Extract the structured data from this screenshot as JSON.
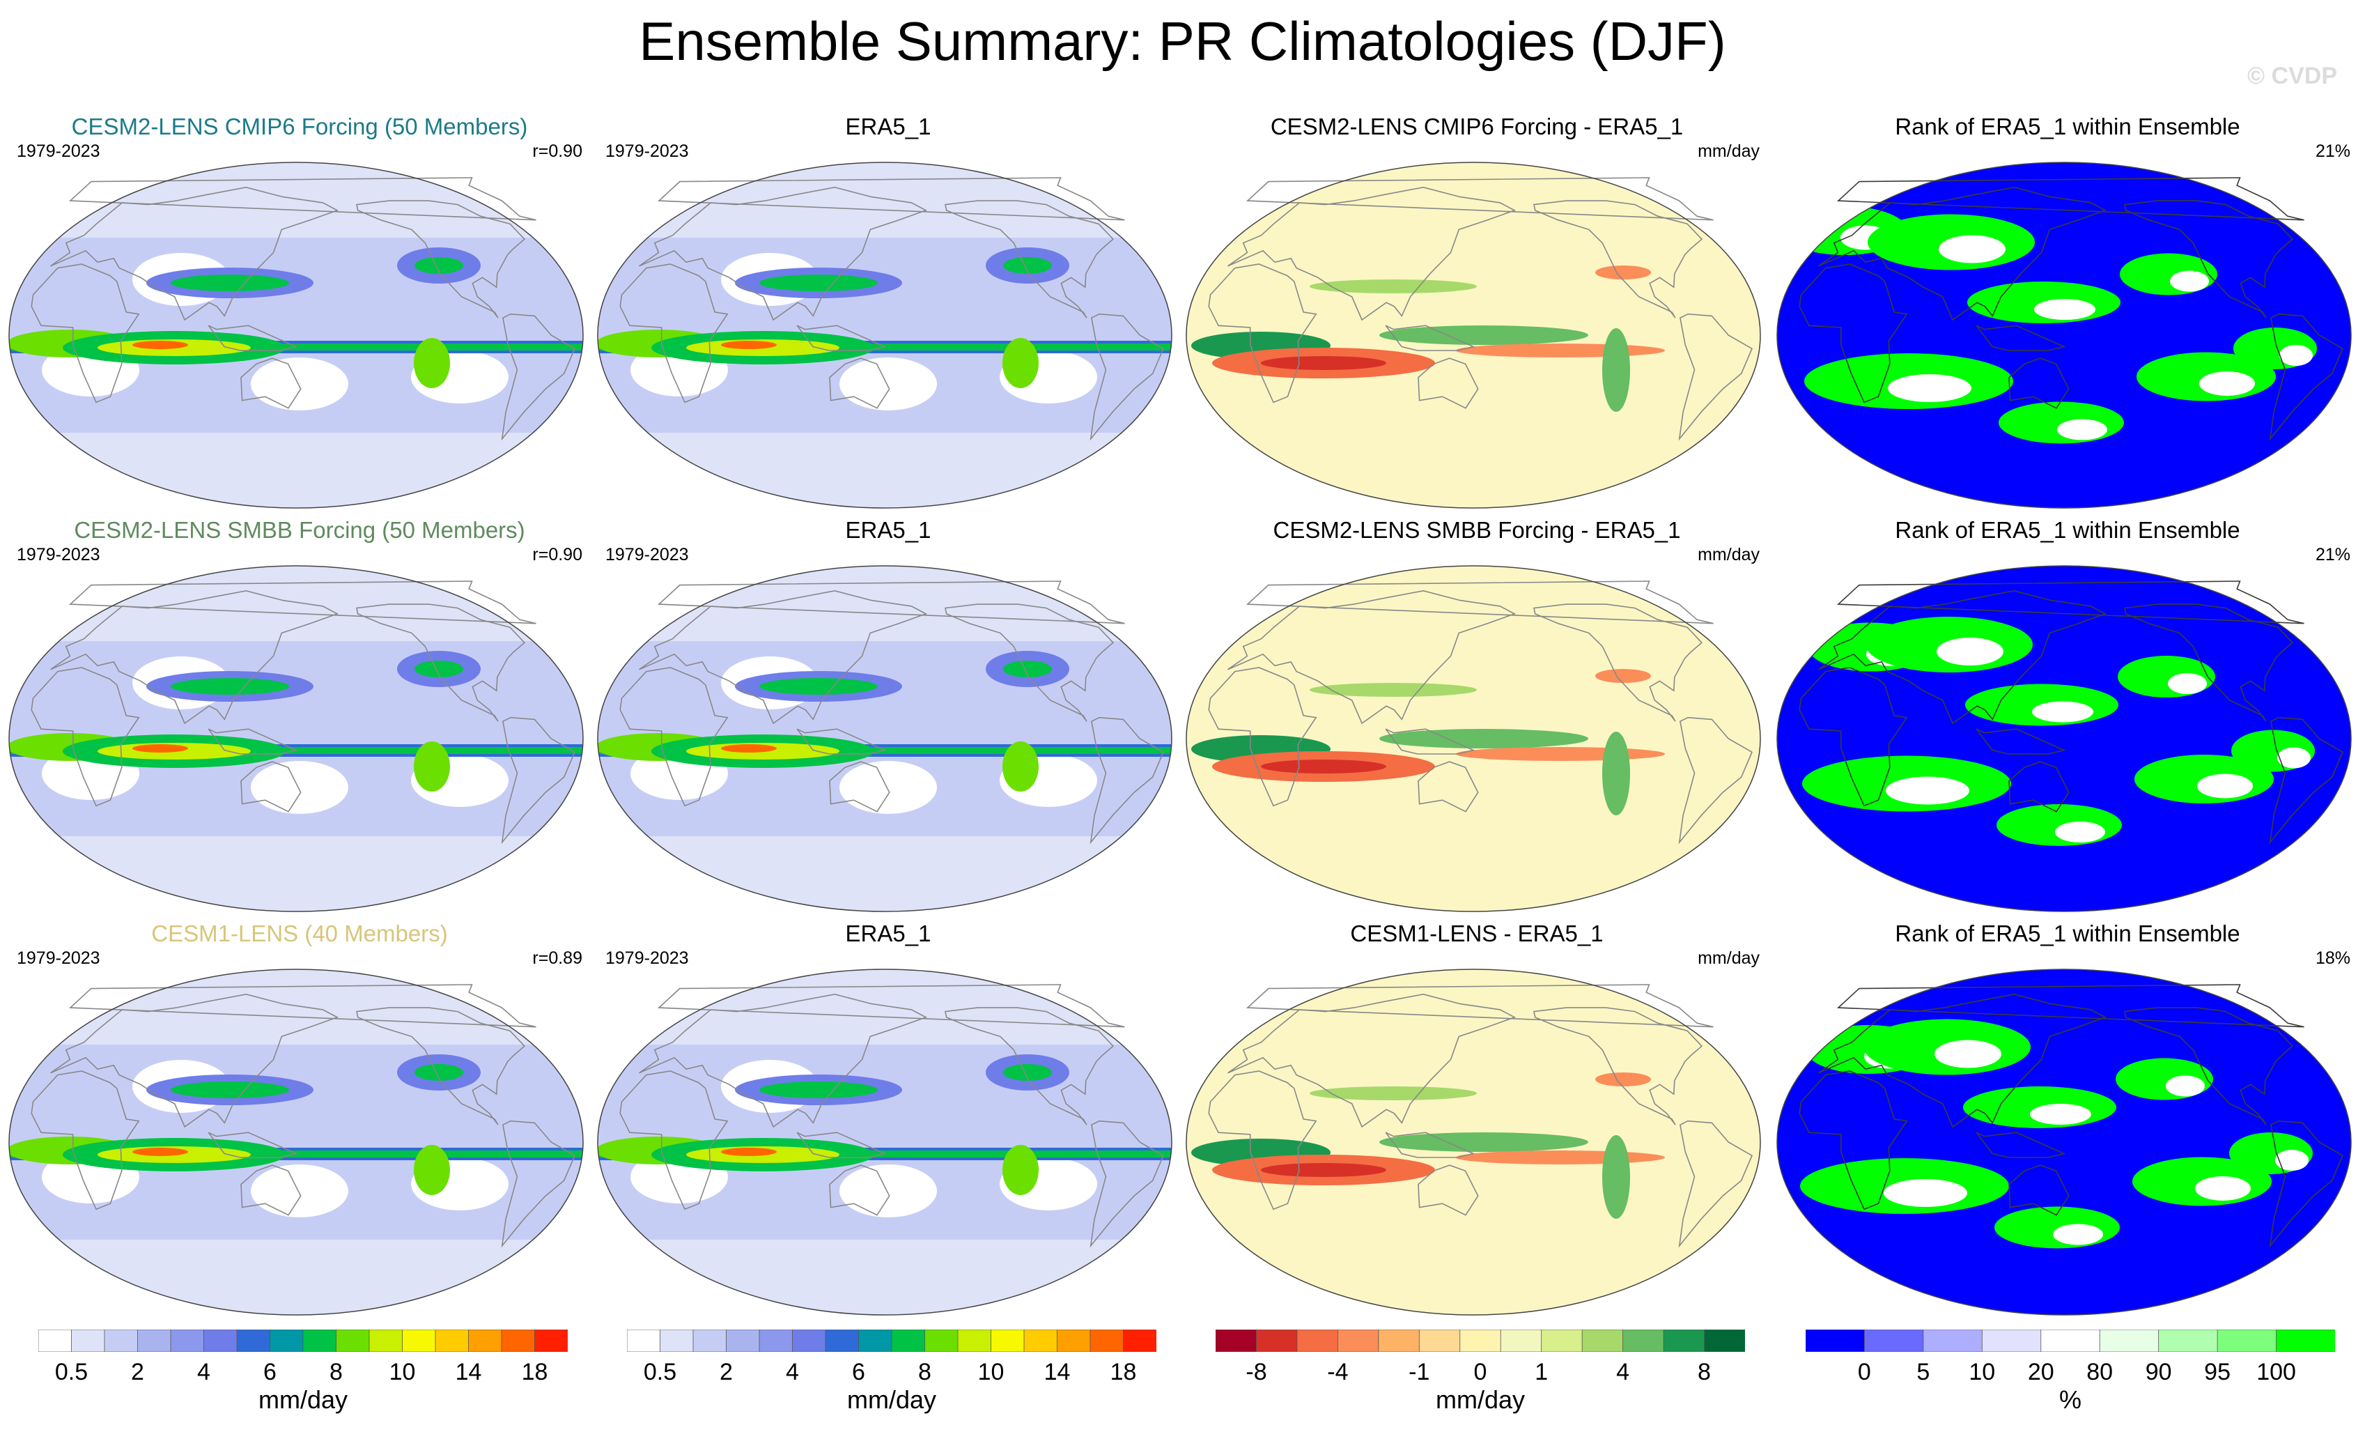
{
  "title": "Ensemble Summary: PR Climatologies (DJF)",
  "watermark": "© CVDP",
  "colors": {
    "mean_scale": [
      "#ffffff",
      "#dfe3f8",
      "#c6cdf5",
      "#a9b4ef",
      "#8c98eb",
      "#6f7de9",
      "#2f6ad8",
      "#0097a7",
      "#00c246",
      "#6bdf00",
      "#c8f000",
      "#f8f800",
      "#ffcc00",
      "#ff9f00",
      "#ff6600",
      "#ff2000"
    ],
    "diff_scale": [
      "#a50026",
      "#d73027",
      "#f46d43",
      "#fb8d59",
      "#fdb265",
      "#fed994",
      "#fff3b0",
      "#f2f7c0",
      "#d9ef8b",
      "#a6d96a",
      "#66bd63",
      "#1a9850",
      "#006837"
    ],
    "rank_scale": [
      "#0000ff",
      "#6a6aff",
      "#aeaeff",
      "#e2e2ff",
      "#ffffff",
      "#e6ffe6",
      "#b0ffb0",
      "#7dff7d",
      "#00ff00"
    ],
    "ocean_diff": "#fbf6c4",
    "outline": "#888888"
  },
  "panels": [
    {
      "id": "r1c1",
      "title": "CESM2-LENS CMIP6 Forcing (50 Members)",
      "title_color": "#1b7a8a",
      "left": "1979-2023",
      "right": "r=0.90",
      "kind": "mean"
    },
    {
      "id": "r1c2",
      "title": "ERA5_1",
      "title_color": "#000000",
      "left": "1979-2023",
      "right": "",
      "kind": "mean"
    },
    {
      "id": "r1c3",
      "title": "CESM2-LENS CMIP6 Forcing - ERA5_1",
      "title_color": "#000000",
      "left": "",
      "right": "mm/day",
      "kind": "diff"
    },
    {
      "id": "r1c4",
      "title": "Rank of ERA5_1 within Ensemble",
      "title_color": "#000000",
      "left": "",
      "right": "21%",
      "kind": "rank"
    },
    {
      "id": "r2c1",
      "title": "CESM2-LENS SMBB Forcing (50 Members)",
      "title_color": "#5f8a5f",
      "left": "1979-2023",
      "right": "r=0.90",
      "kind": "mean"
    },
    {
      "id": "r2c2",
      "title": "ERA5_1",
      "title_color": "#000000",
      "left": "1979-2023",
      "right": "",
      "kind": "mean"
    },
    {
      "id": "r2c3",
      "title": "CESM2-LENS SMBB Forcing - ERA5_1",
      "title_color": "#000000",
      "left": "",
      "right": "mm/day",
      "kind": "diff"
    },
    {
      "id": "r2c4",
      "title": "Rank of ERA5_1 within Ensemble",
      "title_color": "#000000",
      "left": "",
      "right": "21%",
      "kind": "rank"
    },
    {
      "id": "r3c1",
      "title": "CESM1-LENS (40 Members)",
      "title_color": "#d8c57a",
      "left": "1979-2023",
      "right": "r=0.89",
      "kind": "mean"
    },
    {
      "id": "r3c2",
      "title": "ERA5_1",
      "title_color": "#000000",
      "left": "1979-2023",
      "right": "",
      "kind": "mean"
    },
    {
      "id": "r3c3",
      "title": "CESM1-LENS - ERA5_1",
      "title_color": "#000000",
      "left": "",
      "right": "mm/day",
      "kind": "diff"
    },
    {
      "id": "r3c4",
      "title": "Rank of ERA5_1 within Ensemble",
      "title_color": "#000000",
      "left": "",
      "right": "18%",
      "kind": "rank"
    }
  ],
  "colorbars": [
    {
      "id": "cb1",
      "unit": "mm/day",
      "ticks": [
        "0.5",
        "2",
        "4",
        "6",
        "8",
        "10",
        "14",
        "18"
      ],
      "scale": "mean_scale",
      "tick_bounds": [
        1,
        3,
        5,
        7,
        9,
        11,
        13,
        15
      ]
    },
    {
      "id": "cb2",
      "unit": "mm/day",
      "ticks": [
        "0.5",
        "2",
        "4",
        "6",
        "8",
        "10",
        "14",
        "18"
      ],
      "scale": "mean_scale",
      "tick_bounds": [
        1,
        3,
        5,
        7,
        9,
        11,
        13,
        15
      ]
    },
    {
      "id": "cb3",
      "unit": "mm/day",
      "ticks": [
        "-8",
        "-4",
        "-1",
        "0",
        "1",
        "4",
        "8"
      ],
      "scale": "diff_scale",
      "tick_bounds": [
        1,
        3,
        5,
        6.5,
        8,
        10,
        12
      ]
    },
    {
      "id": "cb4",
      "unit": "%",
      "ticks": [
        "0",
        "5",
        "10",
        "20",
        "80",
        "90",
        "95",
        "100"
      ],
      "scale": "rank_scale",
      "tick_bounds": [
        1,
        2,
        3,
        4,
        5,
        6,
        7,
        8
      ]
    }
  ],
  "chart_data": {
    "type": "heatmap",
    "title": "Ensemble Summary: PR Climatologies (DJF)",
    "season": "DJF",
    "period": "1979-2023",
    "variable": "PR",
    "units": "mm/day",
    "rows": [
      {
        "model": "CESM2-LENS CMIP6 Forcing (50 Members)",
        "observations": "ERA5_1",
        "pattern_correlation": 0.9,
        "rank_summary_percent": 21
      },
      {
        "model": "CESM2-LENS SMBB Forcing (50 Members)",
        "observations": "ERA5_1",
        "pattern_correlation": 0.9,
        "rank_summary_percent": 21
      },
      {
        "model": "CESM1-LENS (40 Members)",
        "observations": "ERA5_1",
        "pattern_correlation": 0.89,
        "rank_summary_percent": 18
      }
    ],
    "colorbar_levels": {
      "climatology_mm_per_day": [
        0.5,
        2,
        4,
        6,
        8,
        10,
        14,
        18
      ],
      "difference_mm_per_day": [
        -8,
        -4,
        -1,
        0,
        1,
        4,
        8
      ],
      "rank_percent": [
        0,
        5,
        10,
        20,
        80,
        90,
        95,
        100
      ]
    }
  }
}
